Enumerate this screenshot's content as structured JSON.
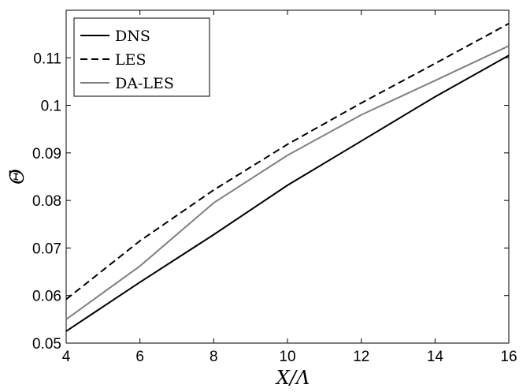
{
  "chart_data": {
    "type": "line",
    "title": "",
    "xlabel": "X/Λ",
    "ylabel": "Θ̄",
    "xlim": [
      4,
      16
    ],
    "ylim": [
      0.05,
      0.12
    ],
    "x_ticks": [
      4,
      6,
      8,
      10,
      12,
      14,
      16
    ],
    "x_tick_labels": [
      "4",
      "6",
      "8",
      "10",
      "12",
      "14",
      "16"
    ],
    "y_ticks": [
      0.05,
      0.06,
      0.07,
      0.08,
      0.09,
      0.1,
      0.11
    ],
    "y_tick_labels": [
      "0.05",
      "0.06",
      "0.07",
      "0.08",
      "0.09",
      "0.1",
      "0.11"
    ],
    "grid": false,
    "legend_position": "top-left",
    "x": [
      4,
      6,
      8,
      10,
      12,
      14,
      16
    ],
    "series": [
      {
        "name": "DNS",
        "style": "solid",
        "color": "#000000",
        "values": [
          0.0525,
          0.0628,
          0.0728,
          0.0832,
          0.0925,
          0.1018,
          0.1105
        ]
      },
      {
        "name": "LES",
        "style": "dashed",
        "color": "#000000",
        "values": [
          0.0592,
          0.0715,
          0.0822,
          0.0918,
          0.1005,
          0.1088,
          0.1172
        ]
      },
      {
        "name": "DA-LES",
        "style": "solid",
        "color": "#808080",
        "values": [
          0.055,
          0.0662,
          0.0795,
          0.0895,
          0.098,
          0.1052,
          0.1125
        ]
      }
    ]
  }
}
